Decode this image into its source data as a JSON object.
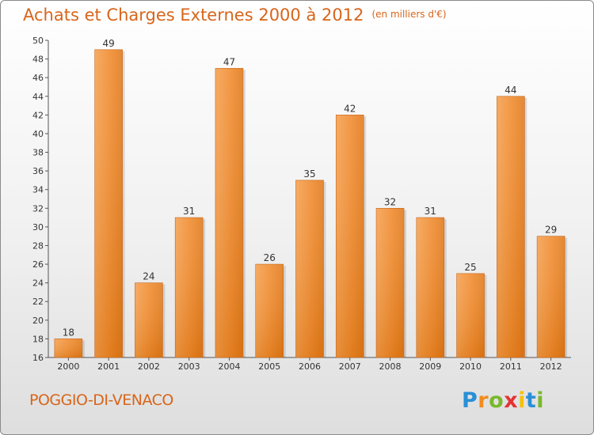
{
  "chart_data": {
    "type": "bar",
    "title": "Achats et Charges Externes 2000 à 2012",
    "subtitle": "(en milliers d'€)",
    "categories": [
      "2000",
      "2001",
      "2002",
      "2003",
      "2004",
      "2005",
      "2006",
      "2007",
      "2008",
      "2009",
      "2010",
      "2011",
      "2012"
    ],
    "values": [
      18,
      49,
      24,
      31,
      47,
      26,
      35,
      42,
      32,
      31,
      25,
      44,
      29
    ],
    "ylim": [
      16,
      50
    ],
    "yticks": [
      16,
      18,
      20,
      22,
      24,
      26,
      28,
      30,
      32,
      34,
      36,
      38,
      40,
      42,
      44,
      46,
      48,
      50
    ],
    "grid": false,
    "bar_color": "#f08a2a",
    "bar_color_light": "#f7a557"
  },
  "location": "POGGIO-DI-VENACO",
  "logo": {
    "letters": [
      "P",
      "r",
      "o",
      "x",
      "i",
      "t",
      "i"
    ],
    "colors": [
      "#2a8fd6",
      "#f28c1c",
      "#79b82b",
      "#e63232",
      "#f4c20d",
      "#2a8fd6",
      "#79b82b"
    ]
  }
}
